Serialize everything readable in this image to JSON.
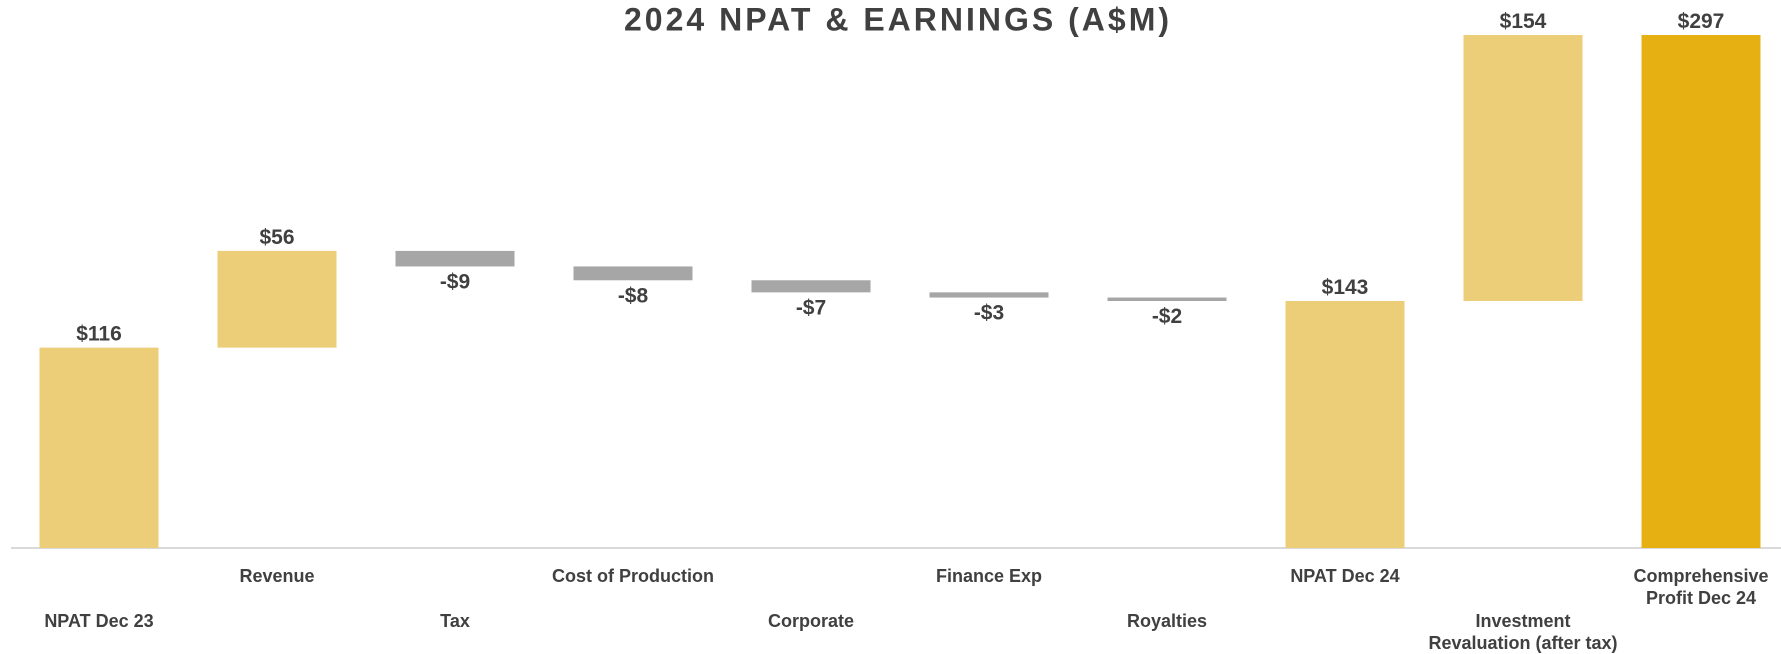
{
  "chart_data": {
    "type": "waterfall",
    "title": "2024 NPAT & EARNINGS (A$M)",
    "categories": [
      "NPAT Dec 23",
      "Revenue",
      "Tax",
      "Cost of Production",
      "Corporate",
      "Finance Exp",
      "Royalties",
      "NPAT Dec 24",
      "Investment Revaluation (after tax)",
      "Comprehensive Profit Dec 24"
    ],
    "values": [
      116,
      56,
      -9,
      -8,
      -7,
      -3,
      -2,
      143,
      154,
      297
    ],
    "value_labels": [
      "$116",
      "$56",
      "-$9",
      "-$8",
      "-$7",
      "-$3",
      "-$2",
      "$143",
      "$154",
      "$297"
    ],
    "is_total": [
      true,
      false,
      false,
      false,
      false,
      false,
      false,
      true,
      false,
      true
    ],
    "colors": [
      "#ECCD78",
      "#ECCD78",
      "#A6A6A6",
      "#A6A6A6",
      "#A6A6A6",
      "#A6A6A6",
      "#A6A6A6",
      "#ECCD78",
      "#ECCD78",
      "#E6B012"
    ]
  }
}
